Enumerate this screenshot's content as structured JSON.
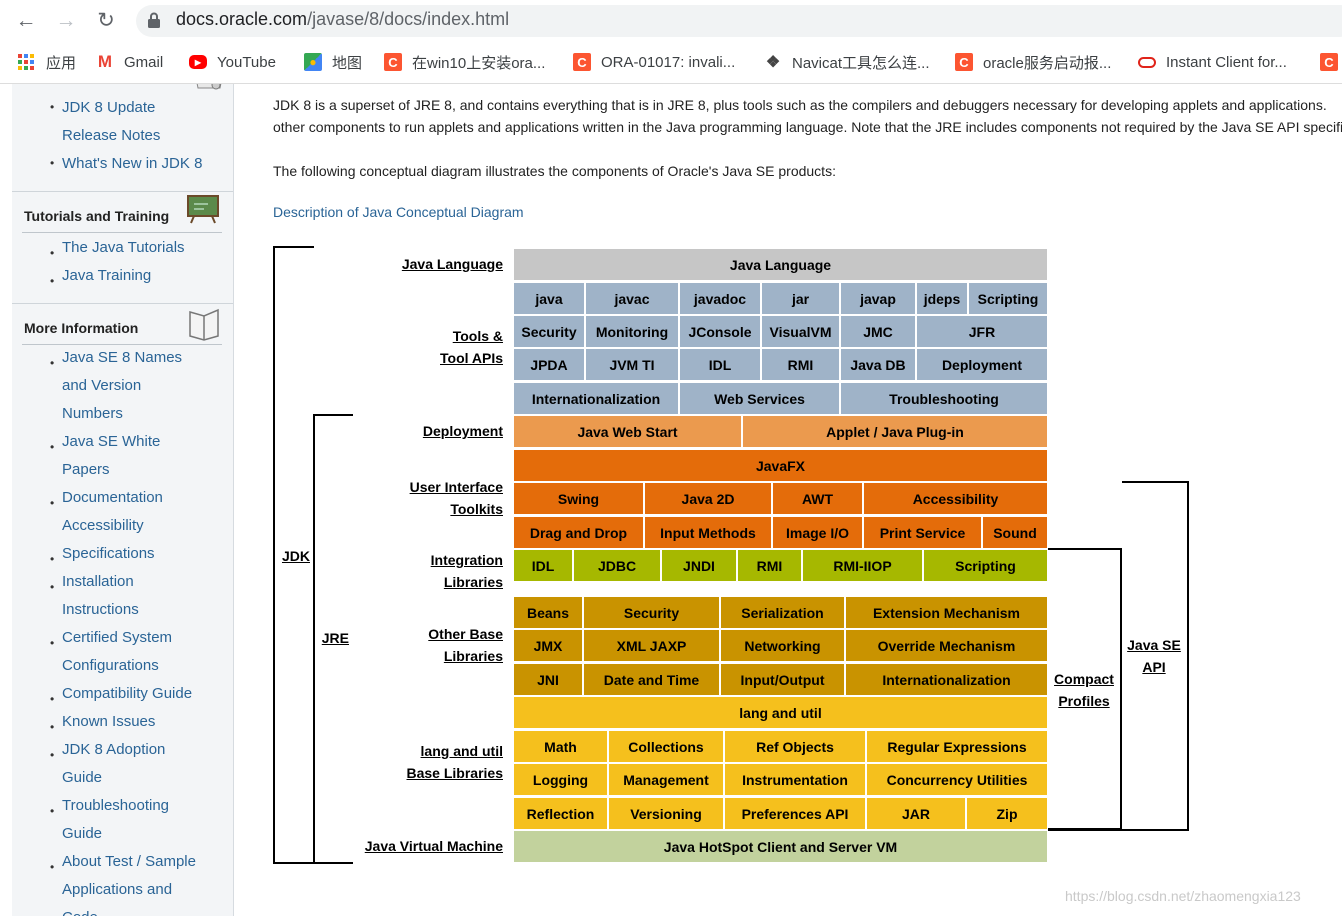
{
  "browser": {
    "back_icon": "back-arrow-icon",
    "forward_icon": "forward-arrow-icon",
    "reload_icon": "reload-icon",
    "url_host": "docs.oracle.com",
    "url_path": "/javase/8/docs/index.html"
  },
  "bookmarks": [
    {
      "label": "应用",
      "icon": "apps-grid-icon"
    },
    {
      "label": "Gmail",
      "icon": "gmail-icon"
    },
    {
      "label": "YouTube",
      "icon": "youtube-icon"
    },
    {
      "label": "地图",
      "icon": "maps-icon"
    },
    {
      "label": "在win10上安装ora...",
      "icon": "csdn-icon"
    },
    {
      "label": "ORA-01017: invali...",
      "icon": "csdn-icon"
    },
    {
      "label": "Navicat工具怎么连...",
      "icon": "navicat-icon"
    },
    {
      "label": "oracle服务启动报...",
      "icon": "csdn-icon"
    },
    {
      "label": "Instant Client for...",
      "icon": "oracle-icon"
    }
  ],
  "sidebar": {
    "top_items": [
      "JDK 8 Update",
      "Release Notes",
      "What's New in JDK 8"
    ],
    "tutorials_heading": "Tutorials and Training",
    "tutorials_items": [
      "The Java Tutorials",
      "Java Training"
    ],
    "more_heading": "More Information",
    "more_items": [
      [
        "Java SE 8 Names",
        "and Version",
        "Numbers"
      ],
      [
        "Java SE White",
        "Papers"
      ],
      [
        "Documentation",
        "Accessibility"
      ],
      [
        "Specifications"
      ],
      [
        "Installation",
        "Instructions"
      ],
      [
        "Certified System",
        "Configurations"
      ],
      [
        "Compatibility Guide"
      ],
      [
        "Known Issues"
      ],
      [
        "JDK 8 Adoption",
        "Guide"
      ],
      [
        "Troubleshooting",
        "Guide"
      ],
      [
        "About Test / Sample",
        "Applications and",
        "Code"
      ]
    ]
  },
  "main": {
    "intro_line1": "JDK 8 is a superset of JRE 8, and contains everything that is in JRE 8, plus tools such as the compilers and debuggers necessary for developing applets and applications.",
    "intro_line2": "other components to run applets and applications written in the Java programming language. Note that the JRE includes components not required by the Java SE API specification.",
    "diagram_intro": "The following conceptual diagram illustrates the components of Oracle's Java SE products:",
    "desc_link": "Description of Java Conceptual Diagram"
  },
  "diagram": {
    "row_labels": {
      "java_language": "Java Language",
      "tools": [
        "Tools &",
        "Tool APIs"
      ],
      "deployment": "Deployment",
      "ui": [
        "User Interface",
        "Toolkits"
      ],
      "integration": [
        "Integration",
        "Libraries"
      ],
      "other_base": [
        "Other Base",
        "Libraries"
      ],
      "lang_util": [
        "lang and util",
        "Base Libraries"
      ],
      "jvm": "Java Virtual Machine"
    },
    "brackets": {
      "jdk": "JDK",
      "jre": "JRE",
      "compact": [
        "Compact",
        "Profiles"
      ],
      "javase": [
        "Java SE",
        "API"
      ]
    },
    "cells": {
      "lang": "Java Language",
      "tools1": [
        "java",
        "javac",
        "javadoc",
        "jar",
        "javap",
        "jdeps",
        "Scripting"
      ],
      "tools2": [
        "Security",
        "Monitoring",
        "JConsole",
        "VisualVM",
        "JMC",
        "JFR"
      ],
      "tools3": [
        "JPDA",
        "JVM TI",
        "IDL",
        "RMI",
        "Java DB",
        "Deployment"
      ],
      "tools4": [
        "Internationalization",
        "Web Services",
        "Troubleshooting"
      ],
      "deploy": [
        "Java Web Start",
        "Applet / Java Plug-in"
      ],
      "javafx": "JavaFX",
      "ui1": [
        "Swing",
        "Java 2D",
        "AWT",
        "Accessibility"
      ],
      "ui2": [
        "Drag and Drop",
        "Input Methods",
        "Image I/O",
        "Print Service",
        "Sound"
      ],
      "integ": [
        "IDL",
        "JDBC",
        "JNDI",
        "RMI",
        "RMI-IIOP",
        "Scripting"
      ],
      "other1": [
        "Beans",
        "Security",
        "Serialization",
        "Extension Mechanism"
      ],
      "other2": [
        "JMX",
        "XML JAXP",
        "Networking",
        "Override Mechanism"
      ],
      "other3": [
        "JNI",
        "Date and Time",
        "Input/Output",
        "Internationalization"
      ],
      "langutil": "lang and util",
      "lu1": [
        "Math",
        "Collections",
        "Ref Objects",
        "Regular Expressions"
      ],
      "lu2": [
        "Logging",
        "Management",
        "Instrumentation",
        "Concurrency Utilities"
      ],
      "lu3": [
        "Reflection",
        "Versioning",
        "Preferences API",
        "JAR",
        "Zip"
      ],
      "jvm": "Java HotSpot Client and Server VM"
    },
    "colors": {
      "gray": "#c6c6c6",
      "blue": "#9fb3c8",
      "light_orange": "#eb9a4e",
      "dark_orange": "#e46c0a",
      "green": "#a6b800",
      "mustard": "#c99300",
      "yellow": "#f5c01d",
      "sage": "#c2d29d"
    }
  },
  "watermark": "https://blog.csdn.net/zhaomengxia123"
}
